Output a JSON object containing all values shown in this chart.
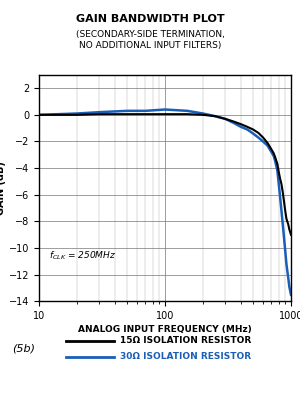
{
  "title": "GAIN BANDWIDTH PLOT",
  "subtitle1": "(SECONDARY-SIDE TERMINATION,",
  "subtitle2": "NO ADDITIONAL INPUT FILTERS)",
  "xlabel": "ANALOG INPUT FREQUENCY (MHz)",
  "ylabel": "GAIN (dB)",
  "xlim": [
    10,
    1000
  ],
  "ylim": [
    -14,
    3
  ],
  "yticks": [
    2,
    0,
    -2,
    -4,
    -6,
    -8,
    -10,
    -12,
    -14
  ],
  "legend_label1": "15Ω ISOLATION RESISTOR",
  "legend_label2": "30Ω ISOLATION RESISTOR",
  "fig_label": "(5b)",
  "color1": "#000000",
  "color2": "#1a5eb8",
  "background": "#ffffff",
  "curve1_x": [
    10,
    20,
    30,
    50,
    70,
    100,
    150,
    200,
    250,
    300,
    350,
    400,
    450,
    500,
    550,
    600,
    650,
    680,
    700,
    730,
    750,
    780,
    800,
    820,
    840,
    860,
    880,
    900,
    920,
    950,
    970,
    1000
  ],
  "curve1_y": [
    0.0,
    0.0,
    0.05,
    0.05,
    0.05,
    0.05,
    0.05,
    0.0,
    -0.1,
    -0.3,
    -0.5,
    -0.7,
    -0.9,
    -1.1,
    -1.35,
    -1.7,
    -2.1,
    -2.4,
    -2.6,
    -2.9,
    -3.2,
    -3.7,
    -4.3,
    -4.8,
    -5.2,
    -5.8,
    -6.5,
    -7.2,
    -7.8,
    -8.2,
    -8.6,
    -9.0
  ],
  "curve2_x": [
    10,
    20,
    30,
    50,
    70,
    100,
    150,
    200,
    250,
    300,
    350,
    400,
    450,
    500,
    550,
    600,
    650,
    680,
    700,
    730,
    750,
    780,
    800,
    820,
    840,
    860,
    880,
    900,
    920,
    950,
    970,
    1000
  ],
  "curve2_y": [
    0.0,
    0.1,
    0.2,
    0.3,
    0.3,
    0.4,
    0.3,
    0.1,
    -0.1,
    -0.3,
    -0.6,
    -0.9,
    -1.1,
    -1.4,
    -1.7,
    -2.0,
    -2.3,
    -2.6,
    -2.8,
    -3.1,
    -3.5,
    -4.2,
    -5.2,
    -6.2,
    -7.2,
    -8.2,
    -9.2,
    -10.2,
    -11.2,
    -12.2,
    -12.9,
    -13.5
  ]
}
